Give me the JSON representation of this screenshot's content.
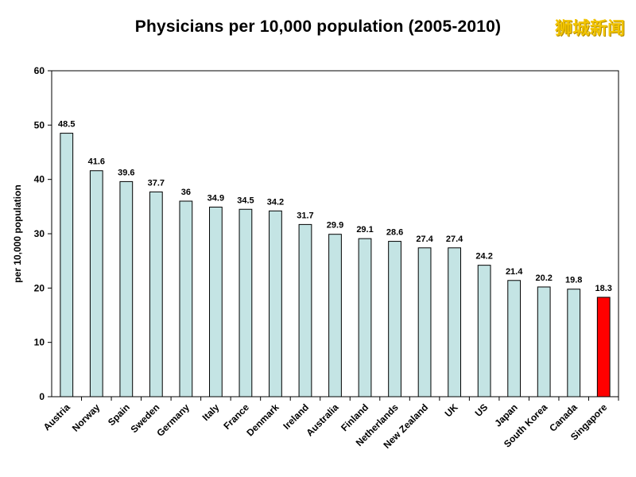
{
  "watermark": "狮城新闻",
  "chart_data": {
    "type": "bar",
    "title": "Physicians per 10,000 population (2005-2010)",
    "xlabel": "",
    "ylabel": "per 10,000 population",
    "ylim": [
      0,
      60
    ],
    "yticks": [
      0,
      10,
      20,
      30,
      40,
      50,
      60
    ],
    "grid": false,
    "categories": [
      "Austria",
      "Norway",
      "Spain",
      "Sweden",
      "Germany",
      "Italy",
      "France",
      "Denmark",
      "Ireland",
      "Australia",
      "Finland",
      "Netherlands",
      "New Zealand",
      "UK",
      "US",
      "Japan",
      "South Korea",
      "Canada",
      "Singapore"
    ],
    "values": [
      48.5,
      41.6,
      39.6,
      37.7,
      36,
      34.9,
      34.5,
      34.2,
      31.7,
      29.9,
      29.1,
      28.6,
      27.4,
      27.4,
      24.2,
      21.4,
      20.2,
      19.8,
      18.3
    ],
    "value_labels": [
      "48.5",
      "41.6",
      "39.6",
      "37.7",
      "36",
      "34.9",
      "34.5",
      "34.2",
      "31.7",
      "29.9",
      "29.1",
      "28.6",
      "27.4",
      "27.4",
      "24.2",
      "21.4",
      "20.2",
      "19.8",
      "18.3"
    ],
    "colors": {
      "default": "#c4e4e4",
      "highlight": "#ff0000",
      "highlight_category": "Singapore",
      "outline": "#000000"
    }
  }
}
